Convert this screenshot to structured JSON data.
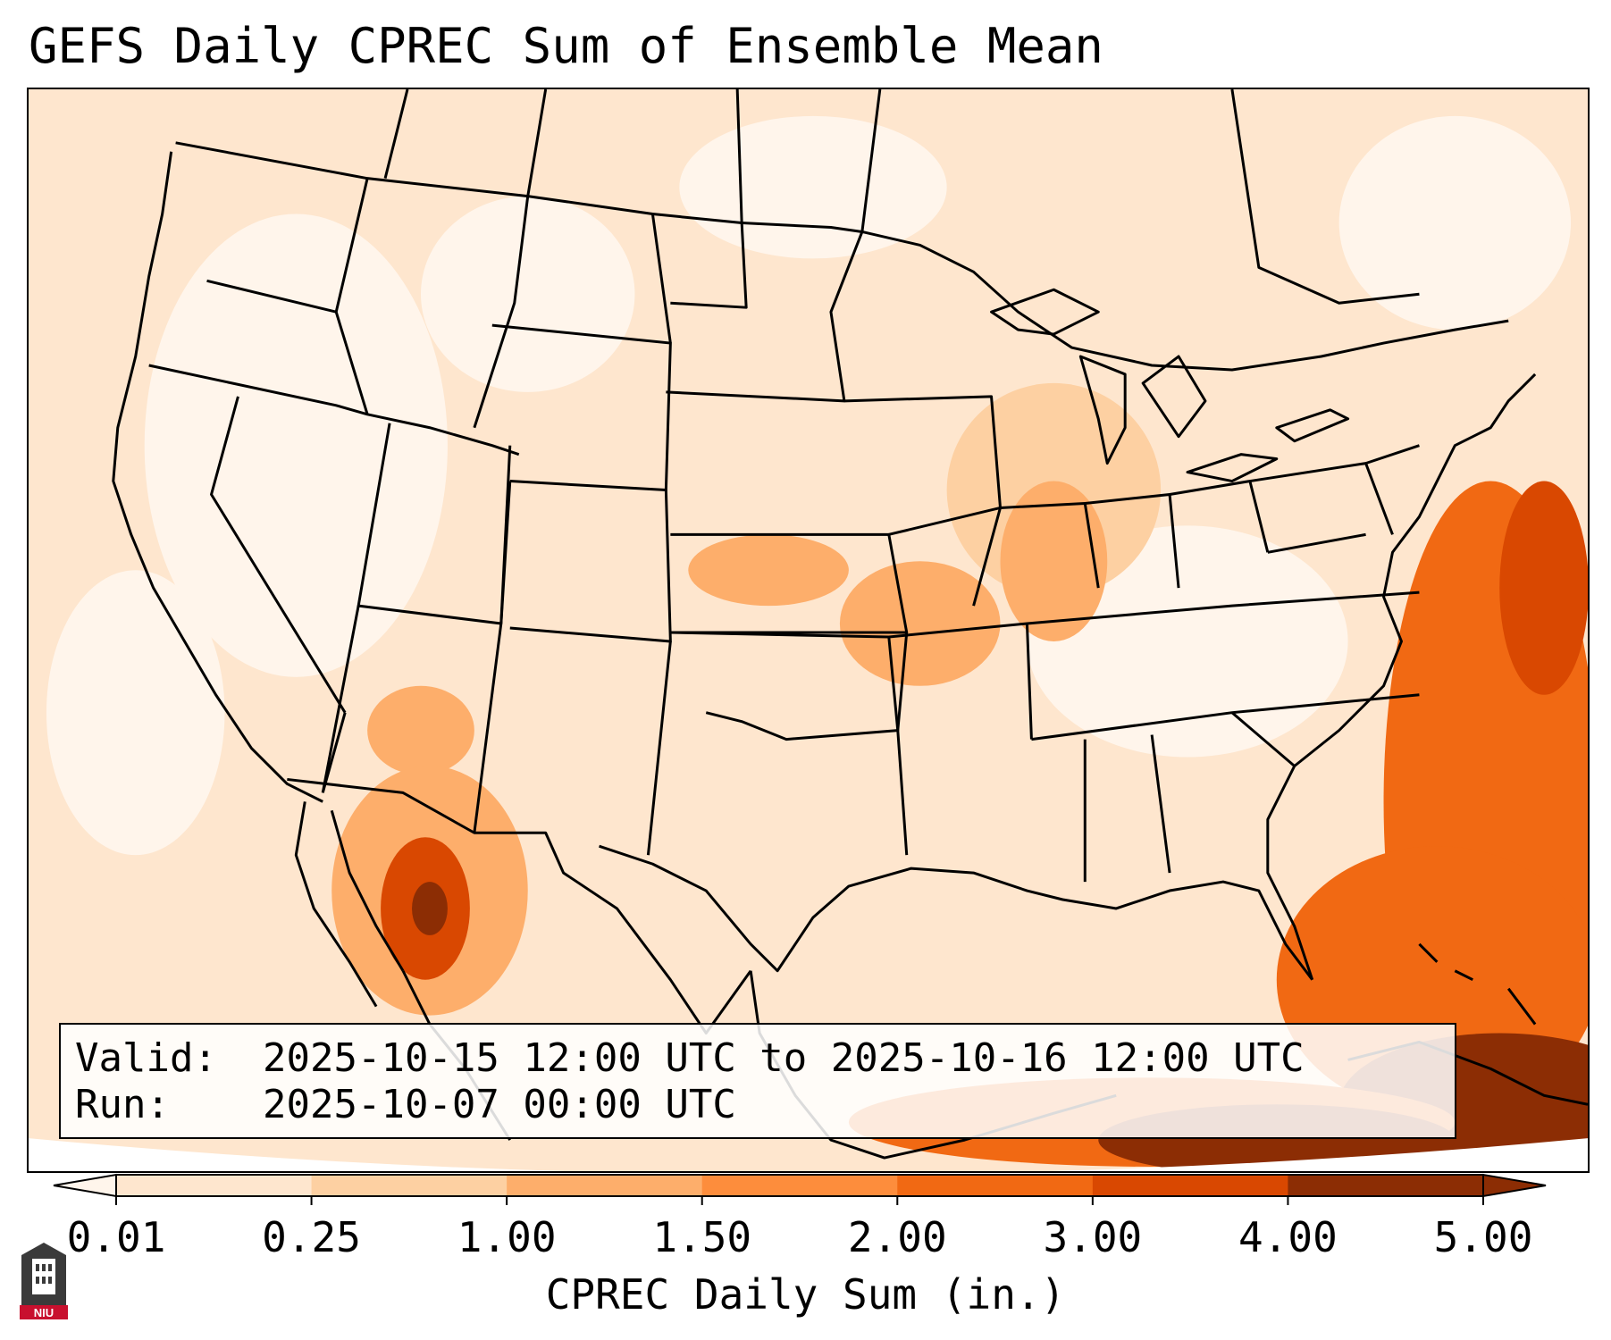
{
  "title": "GEFS Daily CPREC Sum of Ensemble Mean",
  "info_box": {
    "valid_label": "Valid:",
    "valid_value": "2025-10-15 12:00 UTC to 2025-10-16 12:00 UTC",
    "run_label": "Run:",
    "run_value": "2025-10-07 00:00 UTC"
  },
  "colorbar": {
    "label": "CPREC Daily Sum (in.)",
    "ticks": [
      "0.01",
      "0.25",
      "1.00",
      "1.50",
      "2.00",
      "3.00",
      "4.00",
      "5.00"
    ],
    "colors": [
      "#fff5eb",
      "#fee6ce",
      "#fdd0a2",
      "#fdae6b",
      "#fd8d3c",
      "#f16913",
      "#d94801",
      "#8c2d04"
    ],
    "extend": "both"
  },
  "map": {
    "projection": "lambert-conformal",
    "region": "Contiguous United States",
    "colors": {
      "ocean_far": "#fdeee0",
      "land_light": "#fff5eb",
      "light": "#fee6ce",
      "mid_light": "#fdd0a2",
      "mid": "#fdae6b",
      "mid_dark": "#fd8d3c",
      "dark": "#f16913",
      "darker": "#d94801",
      "darkest": "#8c2d04",
      "borders": "#000000"
    }
  },
  "logo": {
    "name": "niu-logo",
    "text": "NIU"
  }
}
